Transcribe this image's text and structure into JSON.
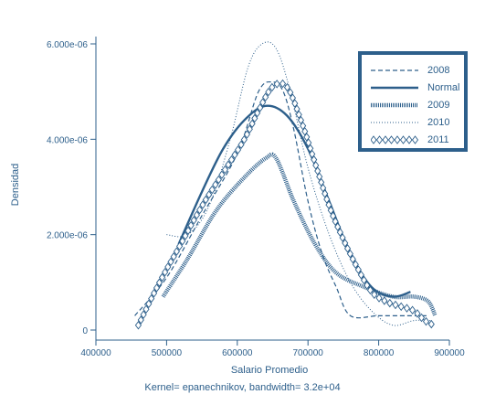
{
  "chart_data": {
    "type": "line",
    "title": "",
    "xlabel": "Salario Promedio",
    "ylabel": "Densidad",
    "xlim": [
      400000,
      900000
    ],
    "ylim": [
      0,
      6e-06
    ],
    "x_ticks": [
      400000,
      500000,
      600000,
      700000,
      800000,
      900000
    ],
    "x_tick_labels": [
      "400000",
      "500000",
      "600000",
      "700000",
      "800000",
      "900000"
    ],
    "y_ticks": [
      0,
      2e-06,
      4e-06,
      6e-06
    ],
    "y_tick_labels": [
      "0",
      "2.000e-06",
      "4.000e-06",
      "6.000e-06"
    ],
    "grid": false,
    "legend_position": "top-right",
    "series": [
      {
        "name": "2008",
        "style": "dashed",
        "points": [
          [
            455000,
            3e-07
          ],
          [
            500000,
            1.1e-06
          ],
          [
            550000,
            2.4e-06
          ],
          [
            600000,
            3.7e-06
          ],
          [
            630000,
            5e-06
          ],
          [
            650000,
            5.2e-06
          ],
          [
            665000,
            5e-06
          ],
          [
            680000,
            4.2e-06
          ],
          [
            700000,
            2.7e-06
          ],
          [
            720000,
            1.6e-06
          ],
          [
            740000,
            9e-07
          ],
          [
            760000,
            3e-07
          ],
          [
            800000,
            3e-07
          ],
          [
            840000,
            3e-07
          ],
          [
            870000,
            3e-07
          ]
        ]
      },
      {
        "name": "Normal",
        "style": "solid",
        "points": [
          [
            517000,
            1.8e-06
          ],
          [
            550000,
            2.9e-06
          ],
          [
            580000,
            3.8e-06
          ],
          [
            610000,
            4.4e-06
          ],
          [
            640000,
            4.7e-06
          ],
          [
            670000,
            4.5e-06
          ],
          [
            700000,
            3.8e-06
          ],
          [
            730000,
            2.7e-06
          ],
          [
            760000,
            1.6e-06
          ],
          [
            790000,
            9e-07
          ],
          [
            820000,
            7e-07
          ],
          [
            845000,
            8e-07
          ]
        ]
      },
      {
        "name": "2009",
        "style": "hatched",
        "points": [
          [
            495000,
            7e-07
          ],
          [
            530000,
            1.5e-06
          ],
          [
            570000,
            2.5e-06
          ],
          [
            610000,
            3.2e-06
          ],
          [
            640000,
            3.6e-06
          ],
          [
            655000,
            3.6e-06
          ],
          [
            680000,
            2.7e-06
          ],
          [
            710000,
            1.8e-06
          ],
          [
            740000,
            1.2e-06
          ],
          [
            780000,
            9e-07
          ],
          [
            820000,
            7e-07
          ],
          [
            850000,
            7e-07
          ],
          [
            870000,
            6e-07
          ],
          [
            880000,
            3e-07
          ]
        ]
      },
      {
        "name": "2010",
        "style": "dotted",
        "points": [
          [
            500000,
            2e-06
          ],
          [
            530000,
            2e-06
          ],
          [
            560000,
            2.6e-06
          ],
          [
            590000,
            4e-06
          ],
          [
            615000,
            5.5e-06
          ],
          [
            635000,
            6e-06
          ],
          [
            655000,
            5.9e-06
          ],
          [
            675000,
            5e-06
          ],
          [
            700000,
            3.4e-06
          ],
          [
            730000,
            2e-06
          ],
          [
            760000,
            1e-06
          ],
          [
            790000,
            4e-07
          ],
          [
            820000,
            1e-07
          ],
          [
            850000,
            2e-07
          ],
          [
            875000,
            2e-07
          ]
        ]
      },
      {
        "name": "2011",
        "style": "diamonds",
        "points": [
          [
            460000,
            1e-07
          ],
          [
            490000,
            1e-06
          ],
          [
            520000,
            1.8e-06
          ],
          [
            550000,
            2.6e-06
          ],
          [
            580000,
            3.3e-06
          ],
          [
            610000,
            4e-06
          ],
          [
            630000,
            4.6e-06
          ],
          [
            650000,
            5.1e-06
          ],
          [
            670000,
            5.1e-06
          ],
          [
            690000,
            4.4e-06
          ],
          [
            710000,
            3.5e-06
          ],
          [
            730000,
            2.6e-06
          ],
          [
            750000,
            1.9e-06
          ],
          [
            770000,
            1.3e-06
          ],
          [
            790000,
            8e-07
          ],
          [
            810000,
            6e-07
          ],
          [
            830000,
            5e-07
          ],
          [
            850000,
            4e-07
          ],
          [
            865000,
            2e-07
          ],
          [
            878000,
            1e-07
          ]
        ]
      }
    ],
    "footnote": "Kernel= epanechnikov, bandwidth= 3.2e+04"
  },
  "colors": {
    "series": "#2d5f8b",
    "axis": "#2d5f8b",
    "legend_border": "#2d5f8b",
    "text": "#2d5f8b"
  }
}
